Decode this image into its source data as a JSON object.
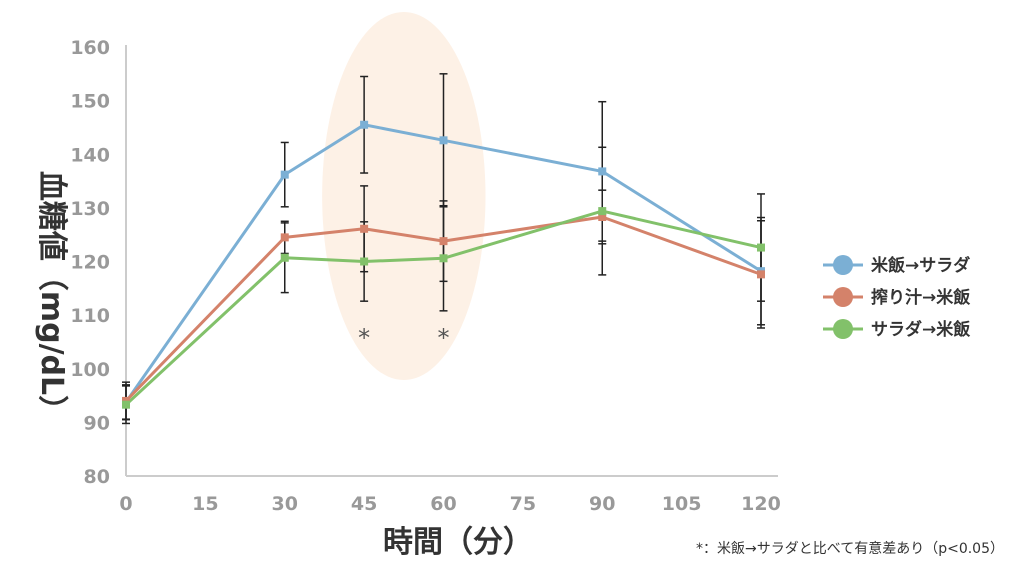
{
  "chart_data": {
    "type": "line",
    "xlabel": "時間（分）",
    "ylabel": "血糖値（mg/dL）",
    "x": [
      0,
      30,
      45,
      60,
      90,
      120
    ],
    "x_ticks": [
      "0",
      "15",
      "30",
      "45",
      "60",
      "75",
      "90",
      "105",
      "120"
    ],
    "xlim": [
      0,
      120
    ],
    "y_ticks": [
      "80",
      "90",
      "100",
      "110",
      "120",
      "130",
      "140",
      "150",
      "160"
    ],
    "ylim": [
      80,
      160
    ],
    "grid": false,
    "legend_position": "right",
    "series": [
      {
        "name": "米飯→サラダ",
        "color": "#7bafd4",
        "values": [
          93.8,
          136.2,
          145.5,
          142.6,
          136.8,
          118.2
        ],
        "error": [
          3.2,
          6.0,
          9.0,
          12.4,
          13.0,
          10.0
        ]
      },
      {
        "name": "搾り汁→米飯",
        "color": "#d4826a",
        "values": [
          94.0,
          124.5,
          126.1,
          123.8,
          128.3,
          117.6
        ],
        "error": [
          3.5,
          3.0,
          8.0,
          7.5,
          5.0,
          10.0
        ]
      },
      {
        "name": "サラダ→米飯",
        "color": "#82c16a",
        "values": [
          93.3,
          120.7,
          120.0,
          120.6,
          129.4,
          122.6
        ],
        "error": [
          3.5,
          6.5,
          7.4,
          9.8,
          11.9,
          10.0
        ]
      }
    ],
    "annotations": [
      {
        "x": 45,
        "text": "*"
      },
      {
        "x": 60,
        "text": "*"
      }
    ],
    "highlight": {
      "x_range": [
        45,
        60
      ],
      "color": "#fdf1e6"
    },
    "footnote": "*：米飯→サラダと比べて有意差あり（p<0.05）"
  }
}
